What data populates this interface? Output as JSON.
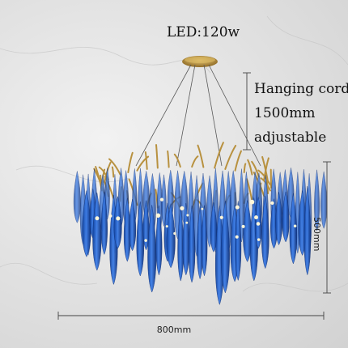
{
  "annotations": {
    "power": "LED:120w",
    "cord_line1": "Hanging cord:",
    "cord_line2": "1500mm",
    "cord_line3": "adjustable",
    "height": "500mm",
    "width": "800mm"
  },
  "colors": {
    "crystal_blue": "#1f5fc9",
    "crystal_light": "#6fa8ff",
    "brass": "#b8913f",
    "dimension_line": "#444444"
  }
}
